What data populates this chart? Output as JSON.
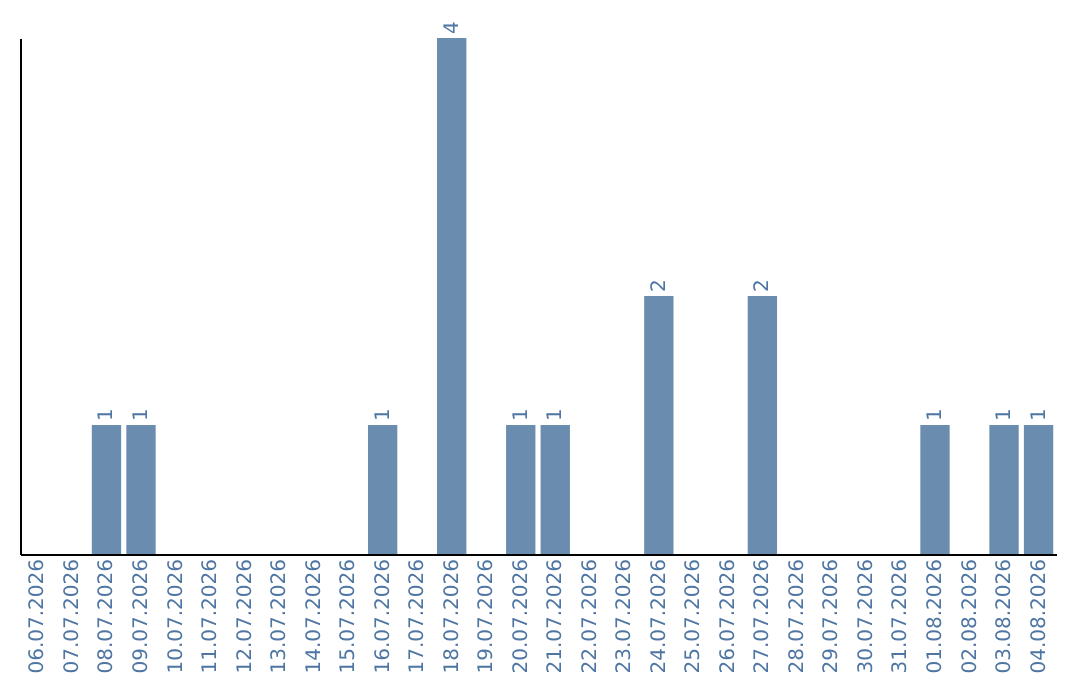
{
  "chart_data": {
    "type": "bar",
    "categories": [
      "06.07.2026",
      "07.07.2026",
      "08.07.2026",
      "09.07.2026",
      "10.07.2026",
      "11.07.2026",
      "12.07.2026",
      "13.07.2026",
      "14.07.2026",
      "15.07.2026",
      "16.07.2026",
      "17.07.2026",
      "18.07.2026",
      "19.07.2026",
      "20.07.2026",
      "21.07.2026",
      "22.07.2026",
      "23.07.2026",
      "24.07.2026",
      "25.07.2026",
      "26.07.2026",
      "27.07.2026",
      "28.07.2026",
      "29.07.2026",
      "30.07.2026",
      "31.07.2026",
      "01.08.2026",
      "02.08.2026",
      "03.08.2026",
      "04.08.2026"
    ],
    "values": [
      0,
      0,
      1,
      1,
      0,
      0,
      0,
      0,
      0,
      0,
      1,
      0,
      4,
      0,
      1,
      1,
      0,
      0,
      2,
      0,
      0,
      2,
      0,
      0,
      0,
      0,
      1,
      0,
      1,
      1
    ],
    "value_labels": [
      null,
      null,
      "1",
      "1",
      null,
      null,
      null,
      null,
      null,
      null,
      "1",
      null,
      "4",
      null,
      "1",
      "1",
      null,
      null,
      "2",
      null,
      null,
      "2",
      null,
      null,
      null,
      null,
      "1",
      null,
      "1",
      "1"
    ],
    "color": "#6a8caf",
    "ylim": [
      0,
      4
    ],
    "tick_labels": "x",
    "grid": false
  }
}
